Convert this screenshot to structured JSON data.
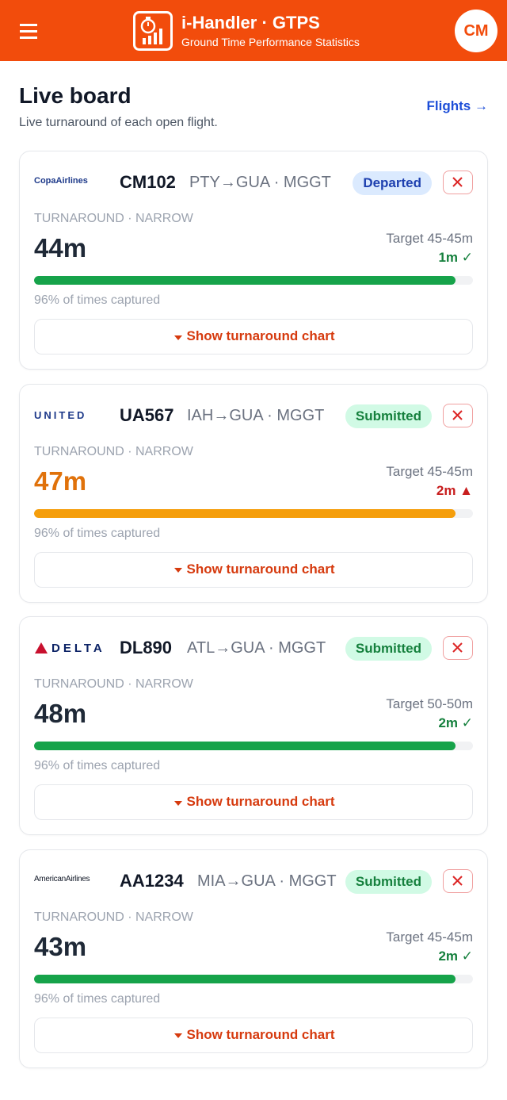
{
  "header": {
    "title": "i-Handler · GTPS",
    "subtitle": "Ground Time Performance Statistics",
    "avatar": "CM"
  },
  "page": {
    "title": "Live board",
    "subtitle": "Live turnaround of each open flight.",
    "link": "Flights →"
  },
  "flights": [
    {
      "logo": "CopaAirlines",
      "logo_color": "#1e3a8a",
      "code": "CM102",
      "route": "PTY→GUA · MGGT",
      "status": "Departed",
      "status_bg": "#dbeafe",
      "status_fg": "#1e40af",
      "category": "TURNAROUND · NARROW",
      "time": "44m",
      "time_color": "#1f2937",
      "target": "Target 45-45m",
      "delta": "1m ✓",
      "delta_color": "#15803d",
      "bar_color": "#16a34a",
      "captured": {
        "value": 96,
        "label": "96% of times captured"
      },
      "button": "Show turnaround chart"
    },
    {
      "logo": "UNITED",
      "logo_color": "#1e3a8a",
      "code": "UA567",
      "route": "IAH→GUA · MGGT",
      "status": "Submitted",
      "status_bg": "#d1fae5",
      "status_fg": "#15803d",
      "category": "TURNAROUND · NARROW",
      "time": "47m",
      "time_color": "#e0720b",
      "target": "Target 45-45m",
      "delta": "2m ▲",
      "delta_color": "#c81e1e",
      "bar_color": "#f59e0b",
      "captured": {
        "value": 96,
        "label": "96% of times captured"
      },
      "button": "Show turnaround chart"
    },
    {
      "logo": "DELTA",
      "logo_color": "#0b2265",
      "code": "DL890",
      "route": "ATL→GUA · MGGT",
      "status": "Submitted",
      "status_bg": "#d1fae5",
      "status_fg": "#15803d",
      "category": "TURNAROUND · NARROW",
      "time": "48m",
      "time_color": "#1f2937",
      "target": "Target 50-50m",
      "delta": "2m ✓",
      "delta_color": "#15803d",
      "bar_color": "#16a34a",
      "captured": {
        "value": 96,
        "label": "96% of times captured"
      },
      "button": "Show turnaround chart"
    },
    {
      "logo": "AmericanAirlines",
      "logo_color": "#111827",
      "code": "AA1234",
      "route": "MIA→GUA · MGGT",
      "status": "Submitted",
      "status_bg": "#d1fae5",
      "status_fg": "#15803d",
      "category": "TURNAROUND · NARROW",
      "time": "43m",
      "time_color": "#1f2937",
      "target": "Target 45-45m",
      "delta": "2m ✓",
      "delta_color": "#15803d",
      "bar_color": "#16a34a",
      "captured": {
        "value": 96,
        "label": "96% of times captured"
      },
      "button": "Show turnaround chart"
    }
  ]
}
